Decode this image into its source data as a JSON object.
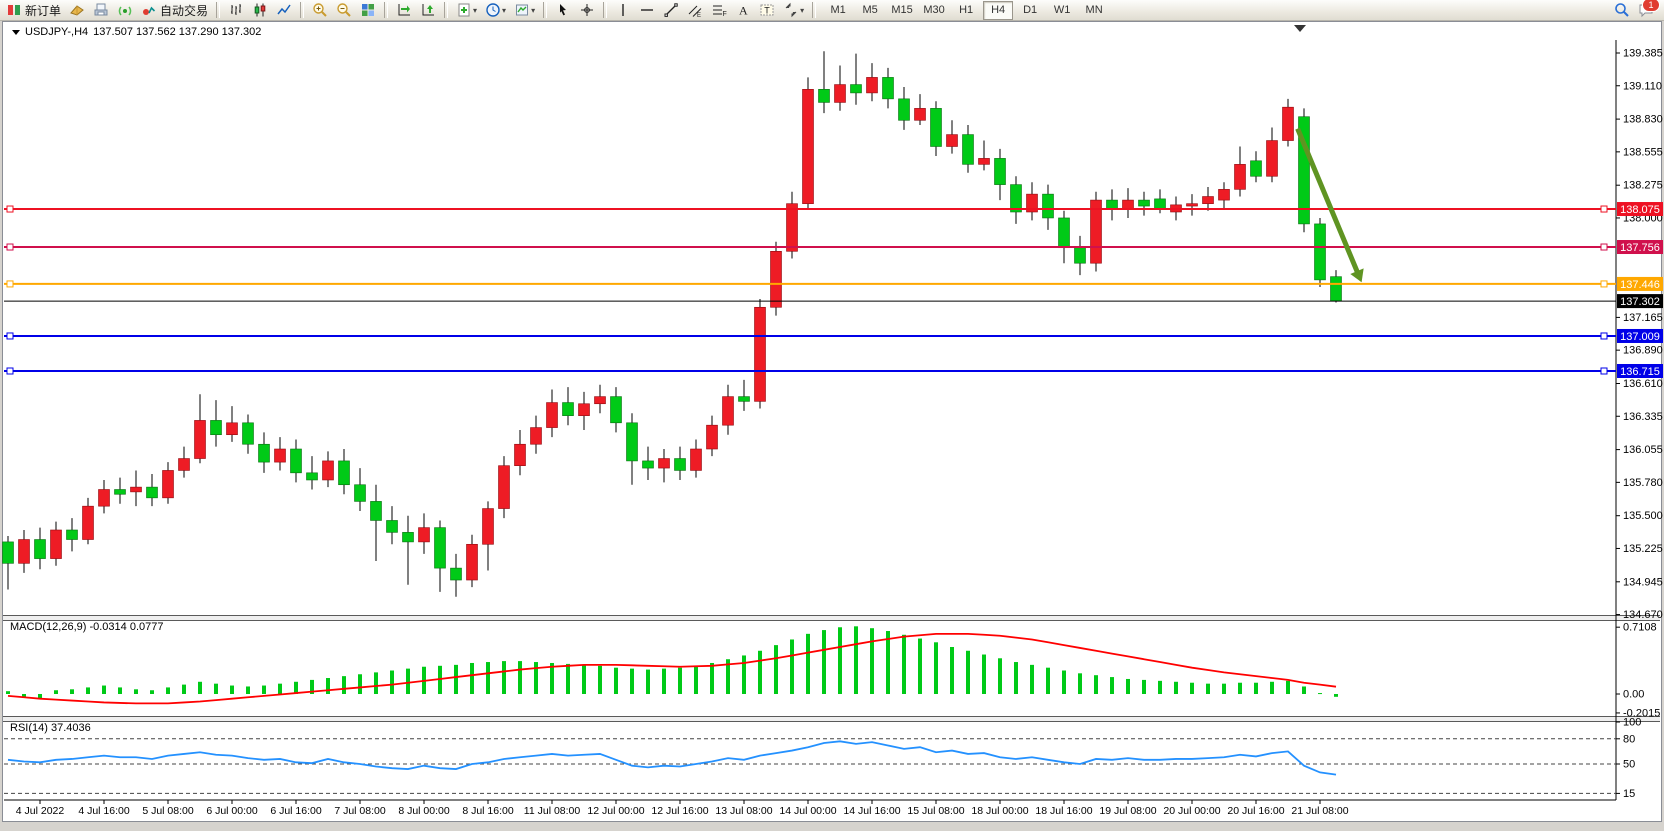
{
  "toolbar": {
    "new_order_label": "新订单",
    "autotrade_label": "自动交易",
    "left_items": [
      {
        "kind": "button",
        "name": "new-order-button",
        "label": "新订单",
        "icon": "new-order-icon"
      },
      {
        "kind": "icon",
        "name": "gold-book-icon"
      },
      {
        "kind": "icon",
        "name": "printer-icon"
      },
      {
        "kind": "icon",
        "name": "signal-icon"
      },
      {
        "kind": "button",
        "name": "autotrading-button",
        "label": "自动交易",
        "icon": "autotrading-icon"
      },
      {
        "kind": "sep"
      },
      {
        "kind": "icon",
        "name": "bar-chart-icon"
      },
      {
        "kind": "icon",
        "name": "candlestick-chart-icon"
      },
      {
        "kind": "icon",
        "name": "line-chart-icon"
      },
      {
        "kind": "sep"
      },
      {
        "kind": "icon",
        "name": "zoom-in-icon"
      },
      {
        "kind": "icon",
        "name": "zoom-out-icon"
      },
      {
        "kind": "icon",
        "name": "tile-windows-icon"
      },
      {
        "kind": "sep"
      },
      {
        "kind": "icon",
        "name": "auto-scroll-icon"
      },
      {
        "kind": "icon",
        "name": "chart-shift-icon"
      },
      {
        "kind": "sep"
      },
      {
        "kind": "icon",
        "name": "new-chart-icon",
        "dropdown": true
      },
      {
        "kind": "icon",
        "name": "periods-icon",
        "dropdown": true
      },
      {
        "kind": "icon",
        "name": "templates-icon",
        "dropdown": true
      },
      {
        "kind": "sep"
      },
      {
        "kind": "icon",
        "name": "cursor-icon"
      },
      {
        "kind": "icon",
        "name": "crosshair-icon"
      },
      {
        "kind": "sep"
      },
      {
        "kind": "icon",
        "name": "vertical-line-icon"
      },
      {
        "kind": "icon",
        "name": "horizontal-line-icon"
      },
      {
        "kind": "icon",
        "name": "trendline-icon"
      },
      {
        "kind": "icon",
        "name": "channel-icon",
        "glyph": "E"
      },
      {
        "kind": "icon",
        "name": "fibonacci-icon",
        "glyph": "F"
      },
      {
        "kind": "icon",
        "name": "text-icon",
        "glyph": "A"
      },
      {
        "kind": "icon",
        "name": "text-label-icon",
        "glyph": "T"
      },
      {
        "kind": "icon",
        "name": "arrows-icon",
        "dropdown": true
      },
      {
        "kind": "sep"
      }
    ],
    "timeframes": [
      {
        "label": "M1",
        "active": false
      },
      {
        "label": "M5",
        "active": false
      },
      {
        "label": "M15",
        "active": false
      },
      {
        "label": "M30",
        "active": false
      },
      {
        "label": "H1",
        "active": false
      },
      {
        "label": "H4",
        "active": true
      },
      {
        "label": "D1",
        "active": false
      },
      {
        "label": "W1",
        "active": false
      },
      {
        "label": "MN",
        "active": false
      }
    ],
    "right_items": [
      {
        "kind": "icon",
        "name": "search-icon"
      },
      {
        "kind": "icon",
        "name": "chat-icon",
        "badge": "1"
      }
    ],
    "notification_count": "1"
  },
  "chart": {
    "symbol_title": "USDJPY-,H4",
    "ohlc_text": "137.507 137.562 137.290 137.302"
  },
  "chart_data": {
    "type": "candlestick",
    "symbol": "USDJPY-",
    "timeframe": "H4",
    "title": "USDJPY-,H4 137.507 137.562 137.290 137.302",
    "current_bar": {
      "open": 137.507,
      "high": 137.562,
      "low": 137.29,
      "close": 137.302
    },
    "up_color": "#ee1c25",
    "down_color": "#00ca17",
    "price_axis_ticks": [
      139.385,
      139.11,
      138.83,
      138.555,
      138.275,
      138.0,
      137.165,
      136.89,
      136.61,
      136.335,
      136.055,
      135.78,
      135.5,
      135.225,
      134.945,
      134.67
    ],
    "hlines": [
      {
        "price": 138.075,
        "label": "138.075",
        "color": "#ee1123",
        "width": 2,
        "handles": true
      },
      {
        "price": 137.756,
        "label": "137.756",
        "color": "#d0104c",
        "width": 2,
        "handles": true
      },
      {
        "price": 137.446,
        "label": "137.446",
        "color": "#ffa800",
        "width": 2,
        "handles": true
      },
      {
        "price": 137.302,
        "label": "137.302",
        "color": "#000000",
        "width": 1,
        "handles": false
      },
      {
        "price": 137.009,
        "label": "137.009",
        "color": "#0000e8",
        "width": 2,
        "handles": true
      },
      {
        "price": 136.715,
        "label": "136.715",
        "color": "#0000e8",
        "width": 2,
        "handles": true
      }
    ],
    "x_axis_labels": [
      "4 Jul 2022",
      "4 Jul 16:00",
      "5 Jul 08:00",
      "6 Jul 00:00",
      "6 Jul 16:00",
      "7 Jul 08:00",
      "8 Jul 00:00",
      "8 Jul 16:00",
      "11 Jul 08:00",
      "12 Jul 00:00",
      "12 Jul 16:00",
      "13 Jul 08:00",
      "14 Jul 00:00",
      "14 Jul 16:00",
      "15 Jul 08:00",
      "18 Jul 00:00",
      "18 Jul 16:00",
      "19 Jul 08:00",
      "20 Jul 00:00",
      "20 Jul 16:00",
      "21 Jul 08:00"
    ],
    "candles": [
      [
        135.28,
        135.33,
        134.88,
        135.1
      ],
      [
        135.1,
        135.38,
        135.02,
        135.3
      ],
      [
        135.3,
        135.4,
        135.05,
        135.14
      ],
      [
        135.14,
        135.45,
        135.08,
        135.38
      ],
      [
        135.38,
        135.48,
        135.2,
        135.3
      ],
      [
        135.3,
        135.65,
        135.26,
        135.58
      ],
      [
        135.58,
        135.8,
        135.52,
        135.72
      ],
      [
        135.72,
        135.82,
        135.6,
        135.68
      ],
      [
        135.7,
        135.88,
        135.58,
        135.74
      ],
      [
        135.74,
        135.85,
        135.58,
        135.65
      ],
      [
        135.65,
        135.95,
        135.6,
        135.88
      ],
      [
        135.88,
        136.08,
        135.82,
        135.98
      ],
      [
        135.98,
        136.52,
        135.94,
        136.3
      ],
      [
        136.3,
        136.47,
        136.08,
        136.18
      ],
      [
        136.18,
        136.42,
        136.12,
        136.28
      ],
      [
        136.28,
        136.35,
        136.02,
        136.1
      ],
      [
        136.1,
        136.2,
        135.86,
        135.95
      ],
      [
        135.95,
        136.16,
        135.88,
        136.06
      ],
      [
        136.06,
        136.14,
        135.78,
        135.86
      ],
      [
        135.86,
        136.0,
        135.72,
        135.8
      ],
      [
        135.8,
        136.04,
        135.74,
        135.96
      ],
      [
        135.96,
        136.06,
        135.68,
        135.76
      ],
      [
        135.76,
        135.9,
        135.54,
        135.62
      ],
      [
        135.62,
        135.76,
        135.12,
        135.46
      ],
      [
        135.46,
        135.58,
        135.26,
        135.36
      ],
      [
        135.36,
        135.5,
        134.92,
        135.28
      ],
      [
        135.28,
        135.52,
        135.18,
        135.4
      ],
      [
        135.4,
        135.46,
        134.86,
        135.06
      ],
      [
        135.06,
        135.18,
        134.82,
        134.96
      ],
      [
        134.96,
        135.34,
        134.9,
        135.26
      ],
      [
        135.26,
        135.62,
        135.04,
        135.56
      ],
      [
        135.56,
        136.0,
        135.48,
        135.92
      ],
      [
        135.92,
        136.22,
        135.84,
        136.1
      ],
      [
        136.1,
        136.34,
        136.02,
        136.24
      ],
      [
        136.24,
        136.56,
        136.16,
        136.45
      ],
      [
        136.45,
        136.58,
        136.26,
        136.34
      ],
      [
        136.34,
        136.54,
        136.22,
        136.44
      ],
      [
        136.44,
        136.6,
        136.36,
        136.5
      ],
      [
        136.5,
        136.58,
        136.2,
        136.28
      ],
      [
        136.28,
        136.36,
        135.76,
        135.96
      ],
      [
        135.96,
        136.08,
        135.8,
        135.9
      ],
      [
        135.9,
        136.06,
        135.78,
        135.98
      ],
      [
        135.98,
        136.08,
        135.8,
        135.88
      ],
      [
        135.88,
        136.14,
        135.82,
        136.06
      ],
      [
        136.06,
        136.34,
        136.0,
        136.26
      ],
      [
        136.26,
        136.6,
        136.18,
        136.5
      ],
      [
        136.5,
        136.64,
        136.38,
        136.46
      ],
      [
        136.46,
        137.32,
        136.4,
        137.25
      ],
      [
        137.25,
        137.8,
        137.18,
        137.72
      ],
      [
        137.72,
        138.22,
        137.66,
        138.12
      ],
      [
        138.12,
        139.18,
        138.08,
        139.08
      ],
      [
        139.08,
        139.4,
        138.88,
        138.97
      ],
      [
        138.97,
        139.28,
        138.9,
        139.12
      ],
      [
        139.12,
        139.38,
        138.95,
        139.05
      ],
      [
        139.05,
        139.3,
        138.98,
        139.18
      ],
      [
        139.18,
        139.26,
        138.92,
        139.0
      ],
      [
        139.0,
        139.1,
        138.74,
        138.82
      ],
      [
        138.82,
        139.04,
        138.78,
        138.92
      ],
      [
        138.92,
        138.98,
        138.52,
        138.6
      ],
      [
        138.6,
        138.82,
        138.54,
        138.7
      ],
      [
        138.7,
        138.78,
        138.38,
        138.45
      ],
      [
        138.45,
        138.65,
        138.4,
        138.5
      ],
      [
        138.5,
        138.58,
        138.15,
        138.28
      ],
      [
        138.28,
        138.35,
        137.95,
        138.05
      ],
      [
        138.05,
        138.3,
        137.98,
        138.2
      ],
      [
        138.2,
        138.28,
        137.9,
        138.0
      ],
      [
        138.0,
        138.06,
        137.62,
        137.75
      ],
      [
        137.75,
        137.85,
        137.52,
        137.62
      ],
      [
        137.62,
        138.22,
        137.55,
        138.15
      ],
      [
        138.15,
        138.24,
        137.98,
        138.08
      ],
      [
        138.08,
        138.25,
        138.0,
        138.15
      ],
      [
        138.15,
        138.22,
        138.02,
        138.1
      ],
      [
        138.16,
        138.24,
        138.04,
        138.08
      ],
      [
        138.05,
        138.18,
        137.98,
        138.11
      ],
      [
        138.1,
        138.2,
        138.02,
        138.12
      ],
      [
        138.12,
        138.26,
        138.06,
        138.18
      ],
      [
        138.15,
        138.3,
        138.08,
        138.24
      ],
      [
        138.24,
        138.6,
        138.18,
        138.45
      ],
      [
        138.48,
        138.56,
        138.3,
        138.35
      ],
      [
        138.35,
        138.76,
        138.3,
        138.65
      ],
      [
        138.65,
        139.0,
        138.6,
        138.93
      ],
      [
        138.85,
        138.92,
        137.88,
        137.95
      ],
      [
        137.95,
        138.0,
        137.42,
        137.48
      ],
      [
        137.507,
        137.562,
        137.29,
        137.302
      ]
    ],
    "arrow": {
      "from_bar": 80.6,
      "from_price": 138.75,
      "to_bar": 84.6,
      "to_price": 137.46,
      "color": "#5f9422"
    },
    "macd": {
      "label": "MACD(12,26,9) -0.0314 0.0777",
      "value": -0.0314,
      "signal_value": 0.0777,
      "axis_ticks": [
        0.7108,
        0.0,
        -0.2015
      ],
      "histogram_color": "#00ca17",
      "signal_color": "#ff0000",
      "histogram": [
        0.03,
        -0.04,
        -0.05,
        0.04,
        0.05,
        0.07,
        0.09,
        0.07,
        0.05,
        0.04,
        0.07,
        0.1,
        0.13,
        0.11,
        0.09,
        0.08,
        0.09,
        0.11,
        0.13,
        0.15,
        0.17,
        0.19,
        0.21,
        0.23,
        0.25,
        0.27,
        0.29,
        0.3,
        0.31,
        0.33,
        0.34,
        0.35,
        0.35,
        0.34,
        0.33,
        0.32,
        0.31,
        0.3,
        0.28,
        0.27,
        0.26,
        0.27,
        0.28,
        0.3,
        0.33,
        0.37,
        0.41,
        0.46,
        0.52,
        0.58,
        0.64,
        0.68,
        0.71,
        0.72,
        0.7,
        0.67,
        0.63,
        0.59,
        0.55,
        0.5,
        0.46,
        0.42,
        0.38,
        0.34,
        0.31,
        0.28,
        0.25,
        0.22,
        0.2,
        0.18,
        0.16,
        0.15,
        0.14,
        0.13,
        0.12,
        0.11,
        0.11,
        0.12,
        0.12,
        0.13,
        0.14,
        0.08,
        0.01,
        -0.03
      ],
      "signal": [
        -0.02,
        -0.035,
        -0.05,
        -0.06,
        -0.07,
        -0.08,
        -0.09,
        -0.095,
        -0.1,
        -0.1,
        -0.1,
        -0.09,
        -0.08,
        -0.065,
        -0.05,
        -0.035,
        -0.02,
        -0.005,
        0.01,
        0.025,
        0.04,
        0.055,
        0.07,
        0.085,
        0.1,
        0.12,
        0.14,
        0.16,
        0.18,
        0.2,
        0.22,
        0.24,
        0.26,
        0.275,
        0.29,
        0.3,
        0.31,
        0.31,
        0.31,
        0.305,
        0.3,
        0.295,
        0.29,
        0.295,
        0.3,
        0.315,
        0.33,
        0.355,
        0.38,
        0.41,
        0.44,
        0.47,
        0.5,
        0.53,
        0.56,
        0.585,
        0.61,
        0.625,
        0.64,
        0.64,
        0.64,
        0.63,
        0.62,
        0.6,
        0.58,
        0.55,
        0.52,
        0.49,
        0.46,
        0.43,
        0.4,
        0.37,
        0.34,
        0.31,
        0.28,
        0.255,
        0.23,
        0.21,
        0.19,
        0.17,
        0.15,
        0.12,
        0.1,
        0.0777
      ]
    },
    "rsi": {
      "label": "RSI(14) 37.4036",
      "value": 37.4036,
      "line_color": "#2491ff",
      "axis_ticks": [
        100,
        80,
        50,
        15
      ],
      "dashed_levels": [
        80,
        50,
        15
      ],
      "values": [
        55,
        53,
        52,
        55,
        56,
        58,
        60,
        58,
        58,
        56,
        60,
        62,
        64,
        61,
        60,
        57,
        55,
        56,
        52,
        51,
        56,
        52,
        50,
        47,
        45,
        44,
        48,
        45,
        44,
        50,
        52,
        56,
        58,
        60,
        62,
        60,
        61,
        62,
        55,
        48,
        46,
        48,
        47,
        50,
        53,
        57,
        55,
        60,
        63,
        66,
        70,
        75,
        77,
        74,
        76,
        72,
        68,
        70,
        64,
        66,
        62,
        63,
        58,
        56,
        58,
        55,
        52,
        50,
        56,
        55,
        57,
        55,
        55,
        56,
        56,
        57,
        58,
        61,
        59,
        63,
        65,
        48,
        40,
        37.4
      ]
    }
  }
}
